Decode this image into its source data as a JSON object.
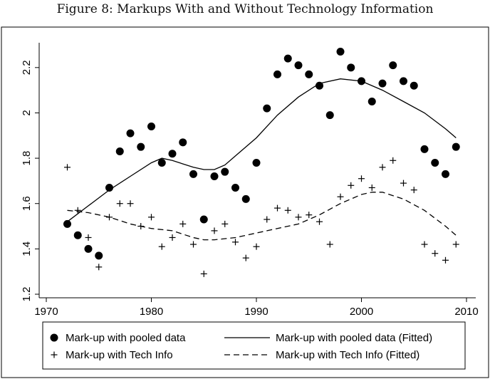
{
  "figure_title": "Figure 8: Markups With and Without Technology Information",
  "chart_data": {
    "type": "scatter",
    "xlim": [
      1970,
      2010
    ],
    "ylim": [
      1.2,
      2.3
    ],
    "x_ticks": [
      1970,
      1980,
      1990,
      2000,
      2010
    ],
    "y_ticks": [
      1.2,
      1.4,
      1.6,
      1.8,
      2.0,
      2.2
    ],
    "x_tick_labels": [
      "1970",
      "1980",
      "1990",
      "2000",
      "2010"
    ],
    "y_tick_labels": [
      "1.2",
      "1.4",
      "1.6",
      "1.8",
      "2",
      "2.2"
    ],
    "xlabel": "",
    "ylabel": "",
    "grid": false,
    "legend_position": "bottom",
    "series": [
      {
        "name": "Mark-up with pooled data",
        "kind": "scatter",
        "marker": "filled-circle",
        "x": [
          1972,
          1973,
          1974,
          1975,
          1976,
          1977,
          1978,
          1979,
          1980,
          1981,
          1982,
          1983,
          1984,
          1985,
          1986,
          1987,
          1988,
          1989,
          1990,
          1991,
          1992,
          1993,
          1994,
          1995,
          1996,
          1997,
          1998,
          1999,
          2000,
          2001,
          2002,
          2003,
          2004,
          2005,
          2006,
          2007,
          2008,
          2009
        ],
        "y": [
          1.51,
          1.46,
          1.4,
          1.37,
          1.67,
          1.83,
          1.91,
          1.85,
          1.94,
          1.78,
          1.82,
          1.87,
          1.73,
          1.53,
          1.72,
          1.74,
          1.67,
          1.62,
          1.78,
          2.02,
          2.17,
          2.24,
          2.21,
          2.17,
          2.12,
          1.99,
          2.27,
          2.2,
          2.14,
          2.05,
          2.13,
          2.21,
          2.14,
          2.12,
          1.84,
          1.78,
          1.73,
          1.85
        ]
      },
      {
        "name": "Mark-up with Tech Info",
        "kind": "scatter",
        "marker": "plus",
        "x": [
          1972,
          1973,
          1974,
          1975,
          1976,
          1977,
          1978,
          1979,
          1980,
          1981,
          1982,
          1983,
          1984,
          1985,
          1986,
          1987,
          1988,
          1989,
          1990,
          1991,
          1992,
          1993,
          1994,
          1995,
          1996,
          1997,
          1998,
          1999,
          2000,
          2001,
          2002,
          2003,
          2004,
          2005,
          2006,
          2007,
          2008,
          2009
        ],
        "y": [
          1.76,
          1.57,
          1.45,
          1.32,
          1.54,
          1.6,
          1.6,
          1.5,
          1.54,
          1.41,
          1.45,
          1.51,
          1.42,
          1.29,
          1.48,
          1.51,
          1.43,
          1.36,
          1.41,
          1.53,
          1.58,
          1.57,
          1.54,
          1.55,
          1.52,
          1.42,
          1.63,
          1.68,
          1.71,
          1.67,
          1.76,
          1.79,
          1.69,
          1.66,
          1.42,
          1.38,
          1.35,
          1.42
        ]
      },
      {
        "name": "Mark-up with pooled data (Fitted)",
        "kind": "line",
        "dash": "solid",
        "x": [
          1972,
          1974,
          1976,
          1978,
          1980,
          1981,
          1982,
          1984,
          1985,
          1986,
          1987,
          1988,
          1990,
          1992,
          1994,
          1996,
          1998,
          2000,
          2002,
          2004,
          2006,
          2008,
          2009
        ],
        "y": [
          1.52,
          1.59,
          1.66,
          1.72,
          1.78,
          1.8,
          1.79,
          1.76,
          1.75,
          1.75,
          1.77,
          1.81,
          1.89,
          1.99,
          2.07,
          2.13,
          2.15,
          2.14,
          2.1,
          2.05,
          2.0,
          1.93,
          1.89
        ]
      },
      {
        "name": "Mark-up with Tech Info (Fitted)",
        "kind": "line",
        "dash": "dashed",
        "x": [
          1972,
          1974,
          1976,
          1978,
          1980,
          1982,
          1984,
          1985,
          1986,
          1988,
          1990,
          1992,
          1994,
          1996,
          1998,
          2000,
          2001,
          2002,
          2004,
          2006,
          2008,
          2009
        ],
        "y": [
          1.57,
          1.56,
          1.54,
          1.51,
          1.49,
          1.48,
          1.45,
          1.44,
          1.44,
          1.45,
          1.47,
          1.49,
          1.51,
          1.55,
          1.6,
          1.64,
          1.65,
          1.65,
          1.62,
          1.57,
          1.5,
          1.46
        ]
      }
    ]
  }
}
